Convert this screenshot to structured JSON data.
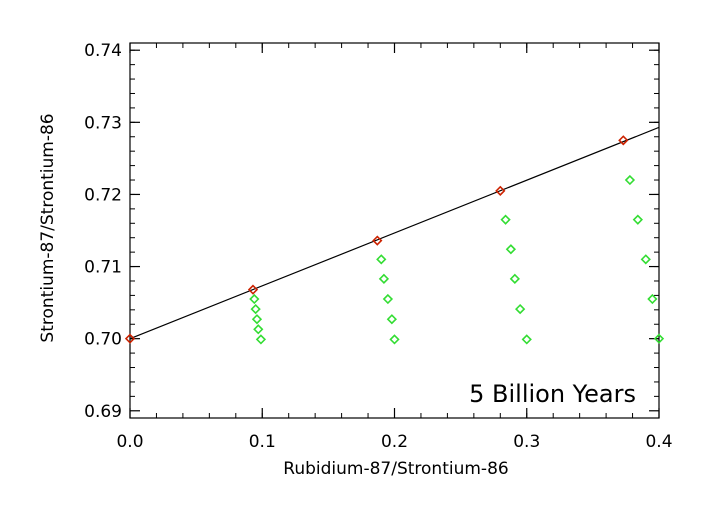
{
  "chart_data": {
    "type": "scatter",
    "xlabel": "Rubidium-87/Strontium-86",
    "ylabel": "Strontium-87/Strontium-86",
    "annotation": "5 Billion Years",
    "xlim": [
      0.0,
      0.4
    ],
    "ylim": [
      0.689,
      0.741
    ],
    "x_ticks": [
      0.0,
      0.1,
      0.2,
      0.3,
      0.4
    ],
    "x_tick_labels": [
      "0.0",
      "0.1",
      "0.2",
      "0.3",
      "0.4"
    ],
    "y_ticks": [
      0.69,
      0.7,
      0.71,
      0.72,
      0.73,
      0.74
    ],
    "y_tick_labels": [
      "0.69",
      "0.70",
      "0.71",
      "0.72",
      "0.73",
      "0.74"
    ],
    "grid": false,
    "marker": "diamond",
    "series": [
      {
        "color": "#cc2200",
        "x": [
          0.0,
          0.093,
          0.187,
          0.28,
          0.373
        ],
        "y": [
          0.7,
          0.7068,
          0.7136,
          0.7205,
          0.7275
        ]
      },
      {
        "color": "#33dd33",
        "x": [
          0.094,
          0.095,
          0.096,
          0.097,
          0.099,
          0.19,
          0.192,
          0.195,
          0.198,
          0.2,
          0.284,
          0.288,
          0.291,
          0.295,
          0.3,
          0.378,
          0.384,
          0.39,
          0.395,
          0.4
        ],
        "y": [
          0.7055,
          0.7041,
          0.7027,
          0.7013,
          0.6999,
          0.711,
          0.7083,
          0.7055,
          0.7027,
          0.6999,
          0.7165,
          0.7124,
          0.7083,
          0.7041,
          0.6999,
          0.722,
          0.7165,
          0.711,
          0.7055,
          0.7
        ]
      }
    ],
    "line": {
      "color": "#000000",
      "x": [
        0.0,
        0.4
      ],
      "y": [
        0.7,
        0.7293
      ]
    }
  }
}
